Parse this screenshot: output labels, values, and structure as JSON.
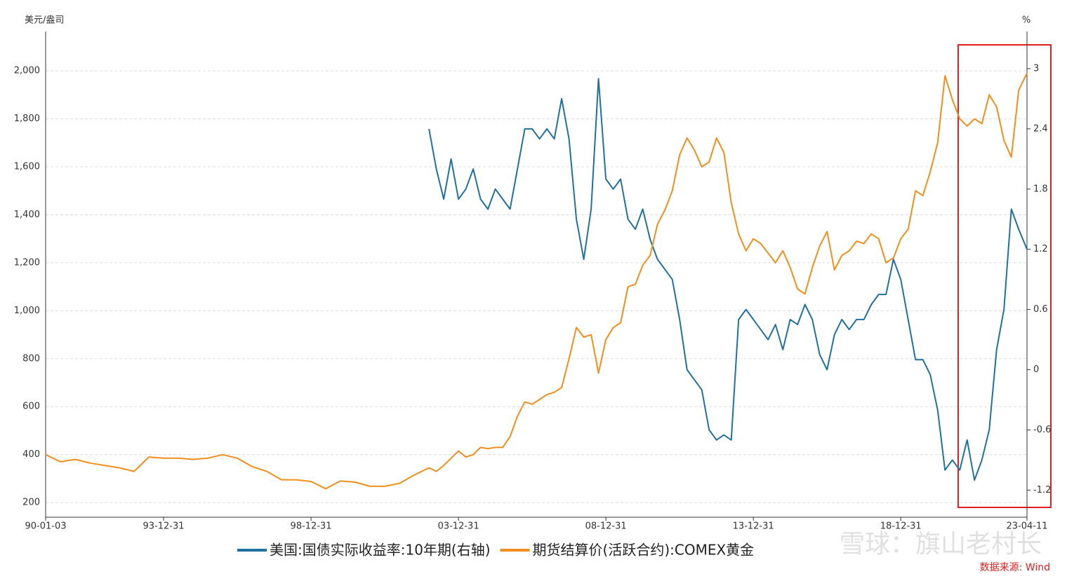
{
  "chart_data": {
    "type": "line",
    "y_axis_label": "美元/盎司",
    "y2_axis_label": "%",
    "x": [
      1990.0,
      1990.5,
      1991.0,
      1991.5,
      1992.0,
      1992.5,
      1993.0,
      1993.5,
      1994.0,
      1994.5,
      1995.0,
      1995.5,
      1996.0,
      1996.5,
      1997.0,
      1997.5,
      1998.0,
      1998.5,
      1999.0,
      1999.5,
      2000.0,
      2000.5,
      2001.0,
      2001.5,
      2002.0,
      2002.5,
      2003.0,
      2003.25,
      2003.5,
      2003.75,
      2004.0,
      2004.25,
      2004.5,
      2004.75,
      2005.0,
      2005.25,
      2005.5,
      2005.75,
      2006.0,
      2006.25,
      2006.5,
      2006.75,
      2007.0,
      2007.25,
      2007.5,
      2007.75,
      2008.0,
      2008.25,
      2008.5,
      2008.75,
      2009.0,
      2009.25,
      2009.5,
      2009.75,
      2010.0,
      2010.25,
      2010.5,
      2010.75,
      2011.0,
      2011.25,
      2011.5,
      2011.75,
      2012.0,
      2012.25,
      2012.5,
      2012.75,
      2013.0,
      2013.25,
      2013.5,
      2013.75,
      2014.0,
      2014.25,
      2014.5,
      2014.75,
      2015.0,
      2015.25,
      2015.5,
      2015.75,
      2016.0,
      2016.25,
      2016.5,
      2016.75,
      2017.0,
      2017.25,
      2017.5,
      2017.75,
      2018.0,
      2018.25,
      2018.5,
      2018.75,
      2019.0,
      2019.25,
      2019.5,
      2019.75,
      2020.0,
      2020.25,
      2020.5,
      2020.75,
      2021.0,
      2021.25,
      2021.5,
      2021.75,
      2022.0,
      2022.25,
      2022.5,
      2022.75,
      2023.0,
      2023.28
    ],
    "series": [
      {
        "name": "美国:国债实际收益率:10年期(右轴)",
        "color": "#20719f",
        "axis": "y2",
        "values": [
          null,
          null,
          null,
          null,
          null,
          null,
          null,
          null,
          null,
          null,
          null,
          null,
          null,
          null,
          null,
          null,
          null,
          null,
          null,
          null,
          null,
          null,
          null,
          null,
          null,
          null,
          2.4,
          2.0,
          1.7,
          2.1,
          1.7,
          1.8,
          2.0,
          1.7,
          1.6,
          1.8,
          1.7,
          1.6,
          2.0,
          2.4,
          2.4,
          2.3,
          2.4,
          2.3,
          2.7,
          2.3,
          1.5,
          1.1,
          1.6,
          2.9,
          1.9,
          1.8,
          1.9,
          1.5,
          1.4,
          1.6,
          1.3,
          1.1,
          1.0,
          0.9,
          0.5,
          0.0,
          -0.1,
          -0.2,
          -0.6,
          -0.7,
          -0.65,
          -0.7,
          0.5,
          0.6,
          0.5,
          0.4,
          0.3,
          0.45,
          0.2,
          0.5,
          0.45,
          0.65,
          0.5,
          0.15,
          0.0,
          0.35,
          0.5,
          0.4,
          0.5,
          0.5,
          0.65,
          0.75,
          0.75,
          1.1,
          0.9,
          0.5,
          0.1,
          0.1,
          -0.05,
          -0.4,
          -1.0,
          -0.9,
          -1.0,
          -0.7,
          -1.1,
          -0.9,
          -0.6,
          0.2,
          0.6,
          1.6,
          1.4,
          1.2
        ]
      },
      {
        "name": "期货结算价(活跃合约):COMEX黄金",
        "color": "#f28e1c",
        "values": [
          400,
          370,
          380,
          365,
          355,
          345,
          330,
          390,
          385,
          385,
          380,
          385,
          400,
          385,
          350,
          330,
          295,
          295,
          288,
          258,
          290,
          285,
          268,
          268,
          280,
          315,
          345,
          330,
          355,
          385,
          415,
          390,
          400,
          430,
          425,
          430,
          430,
          475,
          560,
          620,
          610,
          630,
          650,
          660,
          680,
          800,
          930,
          890,
          900,
          740,
          880,
          930,
          950,
          1100,
          1110,
          1190,
          1230,
          1360,
          1420,
          1500,
          1650,
          1720,
          1670,
          1600,
          1620,
          1720,
          1660,
          1450,
          1320,
          1250,
          1300,
          1280,
          1240,
          1200,
          1250,
          1180,
          1090,
          1070,
          1180,
          1270,
          1330,
          1170,
          1230,
          1250,
          1290,
          1280,
          1320,
          1300,
          1200,
          1220,
          1300,
          1340,
          1500,
          1480,
          1580,
          1700,
          1980,
          1880,
          1800,
          1770,
          1800,
          1780,
          1900,
          1850,
          1710,
          1640,
          1920,
          1990
        ]
      }
    ],
    "xlim": [
      1990.0,
      2023.28
    ],
    "xticks": [
      {
        "value": 1990.0,
        "label": "90-01-03"
      },
      {
        "value": 1994.0,
        "label": "93-12-31"
      },
      {
        "value": 1999.0,
        "label": "98-12-31"
      },
      {
        "value": 2004.0,
        "label": "03-12-31"
      },
      {
        "value": 2009.0,
        "label": "08-12-31"
      },
      {
        "value": 2014.0,
        "label": "13-12-31"
      },
      {
        "value": 2019.0,
        "label": "18-12-31"
      },
      {
        "value": 2023.28,
        "label": "23-04-11"
      }
    ],
    "ylim": [
      139,
      2164
    ],
    "yticks": [
      200,
      400,
      600,
      800,
      {
        "value": 1000,
        "label": "1,000"
      },
      {
        "value": 1200,
        "label": "1,200"
      },
      {
        "value": 1400,
        "label": "1,400"
      },
      {
        "value": 1600,
        "label": "1,600"
      },
      {
        "value": 1800,
        "label": "1,800"
      },
      {
        "value": 2000,
        "label": "2,000"
      }
    ],
    "y2lim": [
      -1.47,
      3.37
    ],
    "y2ticks": [
      -1.2,
      -0.6,
      0,
      0.6,
      1.2,
      1.8,
      2.4,
      3
    ],
    "grid": true,
    "watermark": "雪球：旗山老村长",
    "source": "数据来源: Wind"
  }
}
